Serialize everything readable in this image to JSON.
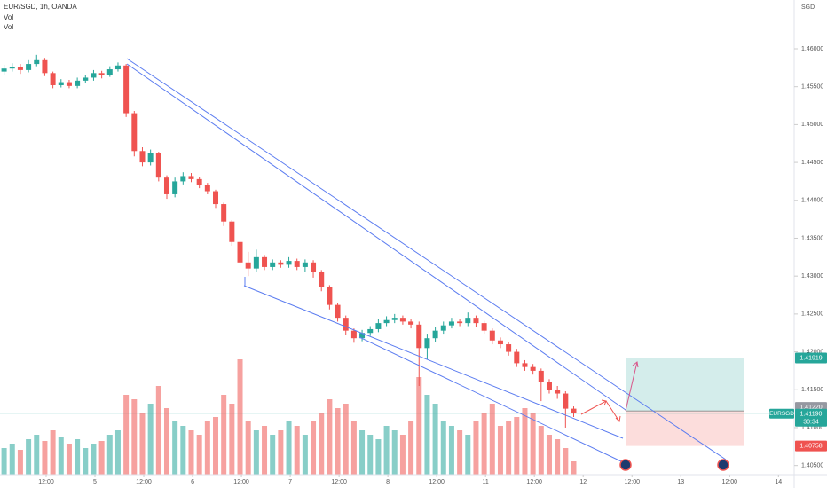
{
  "chart_data": {
    "type": "candlestick",
    "title": "EUR/SGD, 1h, OANDA",
    "indicators": [
      "Vol",
      "Vol"
    ],
    "currency": "SGD",
    "up_color": "#26a69a",
    "down_color": "#ef5350",
    "grid": false,
    "xlim": [
      -0.5,
      97.1
    ],
    "xticks": [
      {
        "value": 5.17,
        "label": "12:00"
      },
      {
        "value": 11.17,
        "label": "5"
      },
      {
        "value": 17.17,
        "label": "12:00"
      },
      {
        "value": 23.17,
        "label": "6"
      },
      {
        "value": 29.17,
        "label": "12:00"
      },
      {
        "value": 35.17,
        "label": "7"
      },
      {
        "value": 41.17,
        "label": "12:00"
      },
      {
        "value": 47.17,
        "label": "8"
      },
      {
        "value": 53.17,
        "label": "12:00"
      },
      {
        "value": 59.17,
        "label": "11"
      },
      {
        "value": 65.17,
        "label": "12:00"
      },
      {
        "value": 71.17,
        "label": "12"
      },
      {
        "value": 77.17,
        "label": "12:00"
      },
      {
        "value": 83.17,
        "label": "13"
      },
      {
        "value": 89.17,
        "label": "12:00"
      },
      {
        "value": 95.17,
        "label": "14"
      }
    ],
    "ylim": [
      1.40379,
      1.46644
    ],
    "yticks": [
      {
        "value": 1.405,
        "label": "1.40500"
      },
      {
        "value": 1.41,
        "label": "1.41000"
      },
      {
        "value": 1.415,
        "label": "1.41500"
      },
      {
        "value": 1.42,
        "label": "1.42000"
      },
      {
        "value": 1.425,
        "label": "1.42500"
      },
      {
        "value": 1.43,
        "label": "1.43000"
      },
      {
        "value": 1.435,
        "label": "1.43500"
      },
      {
        "value": 1.44,
        "label": "1.44000"
      },
      {
        "value": 1.445,
        "label": "1.44500"
      },
      {
        "value": 1.45,
        "label": "1.45000"
      },
      {
        "value": 1.455,
        "label": "1.45500"
      },
      {
        "value": 1.46,
        "label": "1.46000"
      }
    ],
    "open": [
      1.457,
      1.4574,
      1.4576,
      1.4572,
      1.458,
      1.4585,
      1.4568,
      1.4552,
      1.4556,
      1.4551,
      1.4558,
      1.4562,
      1.4568,
      1.4566,
      1.4573,
      1.4578,
      1.4515,
      1.4465,
      1.445,
      1.4462,
      1.443,
      1.4408,
      1.4425,
      1.4432,
      1.4428,
      1.442,
      1.4412,
      1.4395,
      1.4372,
      1.4345,
      1.4318,
      1.431,
      1.4325,
      1.4312,
      1.4318,
      1.4315,
      1.432,
      1.4312,
      1.4318,
      1.4305,
      1.4285,
      1.4262,
      1.4245,
      1.4228,
      1.4218,
      1.4225,
      1.423,
      1.4238,
      1.4242,
      1.4245,
      1.424,
      1.4236,
      1.4205,
      1.4218,
      1.4228,
      1.4235,
      1.424,
      1.4238,
      1.4245,
      1.4238,
      1.4228,
      1.4215,
      1.421,
      1.42,
      1.4185,
      1.418,
      1.4175,
      1.416,
      1.415,
      1.4145,
      1.4125
    ],
    "high": [
      1.4579,
      1.4581,
      1.458,
      1.4585,
      1.4592,
      1.4588,
      1.457,
      1.456,
      1.4559,
      1.4562,
      1.4566,
      1.4572,
      1.4571,
      1.4577,
      1.4582,
      1.458,
      1.4518,
      1.447,
      1.4467,
      1.4464,
      1.4433,
      1.443,
      1.4437,
      1.4436,
      1.4431,
      1.4423,
      1.4414,
      1.4397,
      1.4374,
      1.4347,
      1.4332,
      1.4335,
      1.4328,
      1.4322,
      1.4321,
      1.4325,
      1.4323,
      1.4322,
      1.4321,
      1.4308,
      1.4288,
      1.4265,
      1.4248,
      1.4231,
      1.4229,
      1.4234,
      1.4243,
      1.4247,
      1.425,
      1.4248,
      1.4244,
      1.424,
      1.4224,
      1.4233,
      1.424,
      1.4245,
      1.4244,
      1.4252,
      1.4248,
      1.4241,
      1.4231,
      1.4219,
      1.4213,
      1.4204,
      1.4189,
      1.4184,
      1.4178,
      1.4164,
      1.4155,
      1.4148,
      1.4128
    ],
    "low": [
      1.4566,
      1.457,
      1.4567,
      1.4569,
      1.4577,
      1.4564,
      1.4548,
      1.4549,
      1.4548,
      1.4548,
      1.4555,
      1.4558,
      1.4561,
      1.4563,
      1.457,
      1.451,
      1.4458,
      1.4445,
      1.4446,
      1.4425,
      1.4402,
      1.4404,
      1.4421,
      1.4424,
      1.4416,
      1.4408,
      1.439,
      1.4366,
      1.434,
      1.4312,
      1.43,
      1.4306,
      1.4308,
      1.4308,
      1.4311,
      1.4311,
      1.4308,
      1.4305,
      1.4298,
      1.428,
      1.4256,
      1.424,
      1.4222,
      1.4212,
      1.4214,
      1.4221,
      1.4226,
      1.4234,
      1.4238,
      1.4236,
      1.4231,
      1.4155,
      1.419,
      1.4213,
      1.4224,
      1.4231,
      1.4234,
      1.4234,
      1.4233,
      1.4224,
      1.421,
      1.4205,
      1.4195,
      1.418,
      1.4175,
      1.417,
      1.4135,
      1.4145,
      1.4138,
      1.41,
      1.4114
    ],
    "close": [
      1.4574,
      1.4576,
      1.4572,
      1.458,
      1.4585,
      1.4568,
      1.4552,
      1.4556,
      1.4551,
      1.4558,
      1.4562,
      1.4568,
      1.4566,
      1.4573,
      1.4578,
      1.4515,
      1.4465,
      1.445,
      1.4462,
      1.443,
      1.4408,
      1.4425,
      1.4432,
      1.4428,
      1.442,
      1.4412,
      1.4395,
      1.4372,
      1.4345,
      1.4318,
      1.431,
      1.4325,
      1.4312,
      1.4318,
      1.4315,
      1.432,
      1.4312,
      1.4318,
      1.4305,
      1.4285,
      1.4262,
      1.4245,
      1.4228,
      1.4218,
      1.4225,
      1.423,
      1.4238,
      1.4242,
      1.4245,
      1.424,
      1.4236,
      1.4205,
      1.4218,
      1.4228,
      1.4235,
      1.424,
      1.4238,
      1.4245,
      1.4238,
      1.4228,
      1.4215,
      1.421,
      1.42,
      1.4185,
      1.418,
      1.4175,
      1.416,
      1.415,
      1.4145,
      1.4125,
      1.4119
    ],
    "volume": [
      30,
      35,
      28,
      40,
      45,
      38,
      50,
      42,
      35,
      40,
      30,
      35,
      38,
      45,
      50,
      90,
      85,
      70,
      80,
      100,
      75,
      60,
      55,
      50,
      45,
      60,
      65,
      90,
      80,
      130,
      60,
      50,
      55,
      45,
      50,
      60,
      55,
      45,
      60,
      70,
      85,
      75,
      80,
      60,
      50,
      45,
      40,
      55,
      50,
      45,
      60,
      110,
      90,
      80,
      60,
      55,
      50,
      45,
      60,
      70,
      80,
      55,
      60,
      65,
      75,
      70,
      55,
      45,
      40,
      30,
      15
    ],
    "vlim": [
      0,
      535
    ],
    "target": {
      "value": 1.41919,
      "label": "1.41919"
    },
    "entry": {
      "value": 1.4122,
      "label": "1.41220"
    },
    "stop": {
      "value": 1.40758,
      "label": "1.40758"
    },
    "last": {
      "value": 1.4119,
      "label": "1.41190"
    },
    "symbol": "EURSGD",
    "countdown": "30:34"
  }
}
